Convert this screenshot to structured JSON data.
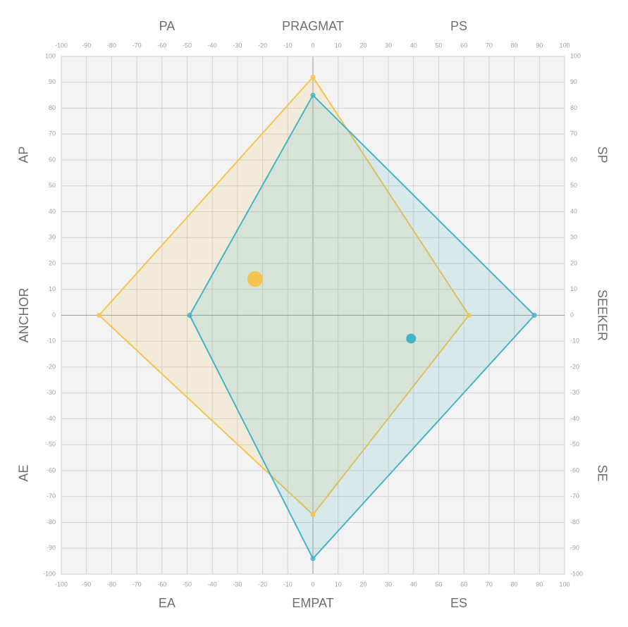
{
  "chart_data": {
    "type": "scatter",
    "xlim": [
      -100,
      100
    ],
    "ylim": [
      -100,
      100
    ],
    "xticks": [
      -100,
      -90,
      -80,
      -70,
      -60,
      -50,
      -40,
      -30,
      -20,
      -10,
      0,
      10,
      20,
      30,
      40,
      50,
      60,
      70,
      80,
      90,
      100
    ],
    "yticks": [
      -100,
      -90,
      -80,
      -70,
      -60,
      -50,
      -40,
      -30,
      -20,
      -10,
      0,
      10,
      20,
      30,
      40,
      50,
      60,
      70,
      80,
      90,
      100
    ],
    "grid": true,
    "axis_labels": {
      "top": [
        "PA",
        "PRAGMAT",
        "PS"
      ],
      "bottom": [
        "EA",
        "EMPAT",
        "ES"
      ],
      "left": [
        "AP",
        "ANCHOR",
        "AE"
      ],
      "right": [
        "SP",
        "SEEKER",
        "SE"
      ]
    },
    "series": [
      {
        "color": "#f5c44e",
        "x": [
          0,
          -85,
          0,
          62
        ],
        "y": [
          92,
          0,
          -77,
          0
        ],
        "point": {
          "x": -23,
          "y": 14
        }
      },
      {
        "color": "#45b3c6",
        "x": [
          0,
          -49,
          0,
          88
        ],
        "y": [
          85,
          0,
          -94,
          0
        ],
        "point": {
          "x": 39,
          "y": -9
        }
      }
    ]
  }
}
